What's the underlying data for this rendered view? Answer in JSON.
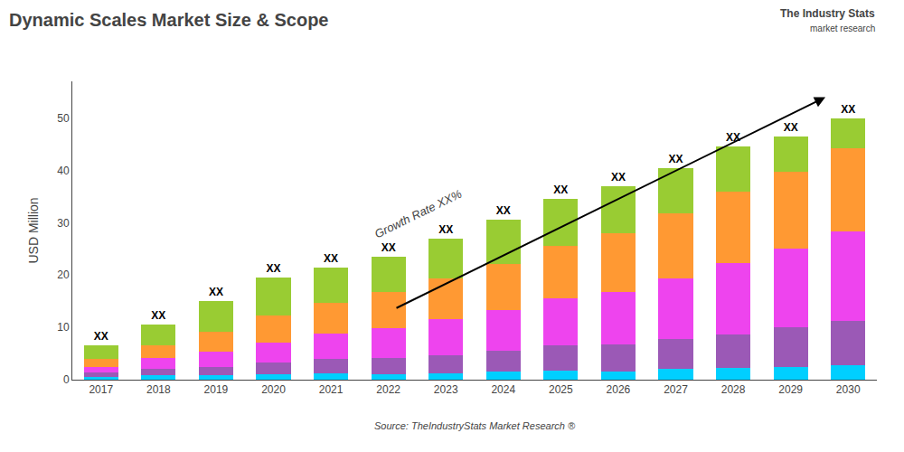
{
  "chart_data": {
    "type": "bar",
    "stacked": true,
    "title": "Dynamic Scales Market Size & Scope",
    "ylabel": "USD Million",
    "source": "Source: TheIndustryStats Market Research ®",
    "logo_text": [
      "The Industry Stats",
      "market research"
    ],
    "growth_label": "Growth Rate XX%",
    "categories": [
      "2017",
      "2018",
      "2019",
      "2020",
      "2021",
      "2022",
      "2023",
      "2024",
      "2025",
      "2026",
      "2027",
      "2028",
      "2029",
      "2030"
    ],
    "series": [
      {
        "color": "#00CFFF",
        "values": [
          0.5,
          0.8,
          0.9,
          1.0,
          1.2,
          1.1,
          1.2,
          1.5,
          1.8,
          1.5,
          2.0,
          2.2,
          2.5,
          2.8
        ]
      },
      {
        "color": "#9B59B6",
        "values": [
          0.8,
          1.3,
          1.6,
          2.3,
          2.8,
          3.0,
          3.5,
          4.0,
          4.8,
          5.2,
          5.8,
          6.5,
          7.5,
          8.5
        ]
      },
      {
        "color": "#EE44EE",
        "values": [
          1.2,
          2.0,
          2.8,
          3.8,
          4.8,
          5.8,
          6.8,
          7.8,
          9.0,
          10.0,
          11.5,
          13.5,
          15.0,
          17.0
        ]
      },
      {
        "color": "#FF9933",
        "values": [
          1.5,
          2.5,
          3.8,
          5.2,
          5.8,
          6.8,
          7.8,
          8.8,
          10.0,
          11.2,
          12.5,
          13.8,
          14.8,
          16.0
        ]
      },
      {
        "color": "#99CC33",
        "values": [
          2.5,
          3.9,
          5.9,
          7.2,
          6.9,
          6.8,
          7.7,
          8.4,
          8.9,
          9.1,
          8.7,
          8.5,
          6.7,
          5.7
        ]
      }
    ],
    "annotations": [
      {
        "text": "XX",
        "x": "2017"
      },
      {
        "text": "XX",
        "x": "2018"
      },
      {
        "text": "XX",
        "x": "2019"
      },
      {
        "text": "XX",
        "x": "2020"
      },
      {
        "text": "XX",
        "x": "2021"
      },
      {
        "text": "XX",
        "x": "2022"
      },
      {
        "text": "XX",
        "x": "2023"
      },
      {
        "text": "XX",
        "x": "2024"
      },
      {
        "text": "XX",
        "x": "2025"
      },
      {
        "text": "XX",
        "x": "2026"
      },
      {
        "text": "XX",
        "x": "2027"
      },
      {
        "text": "XX",
        "x": "2028"
      },
      {
        "text": "XX",
        "x": "2029"
      },
      {
        "text": "XX",
        "x": "2030"
      }
    ],
    "ylim": [
      0,
      57
    ],
    "yticks": [
      0,
      10,
      20,
      30,
      40,
      50
    ],
    "grid": false
  }
}
